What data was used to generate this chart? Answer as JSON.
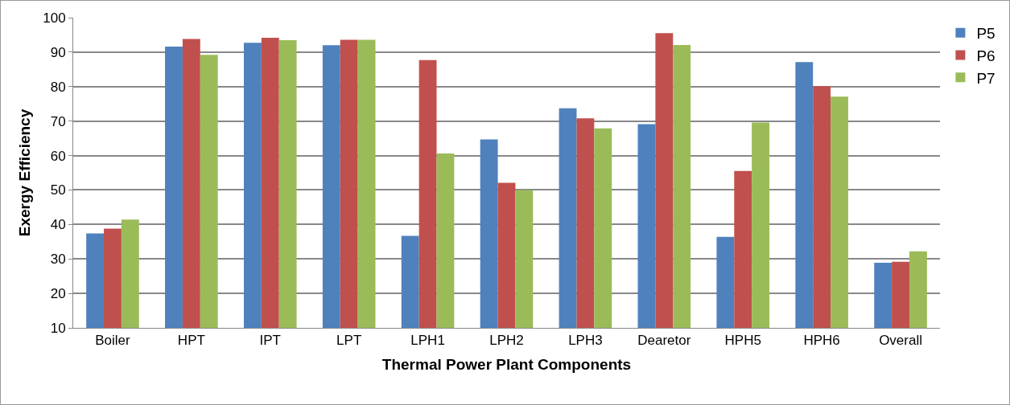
{
  "chart_data": {
    "type": "bar",
    "xlabel": "Thermal Power Plant Components",
    "ylabel": "Exergy Efficiency",
    "categories": [
      "Boiler",
      "HPT",
      "IPT",
      "LPT",
      "LPH1",
      "LPH2",
      "LPH3",
      "Dearetor",
      "HPH5",
      "HPH6",
      "Overall"
    ],
    "series": [
      {
        "name": "P5",
        "color": "#4f81bd",
        "values": [
          37.4,
          91.6,
          92.7,
          92.0,
          36.7,
          64.7,
          73.7,
          69.1,
          36.4,
          87.1,
          28.9
        ]
      },
      {
        "name": "P6",
        "color": "#c0504d",
        "values": [
          38.8,
          93.8,
          94.2,
          93.6,
          87.7,
          52.1,
          70.8,
          95.5,
          55.5,
          80.1,
          29.2
        ]
      },
      {
        "name": "P7",
        "color": "#9bbb59",
        "values": [
          41.4,
          89.2,
          93.5,
          93.6,
          60.6,
          50.0,
          67.9,
          92.1,
          69.6,
          77.1,
          32.2
        ]
      }
    ],
    "ylim": [
      10,
      100
    ],
    "yticks": [
      10,
      20,
      30,
      40,
      50,
      60,
      70,
      80,
      90,
      100
    ],
    "grid": "y",
    "legend": "top right"
  }
}
